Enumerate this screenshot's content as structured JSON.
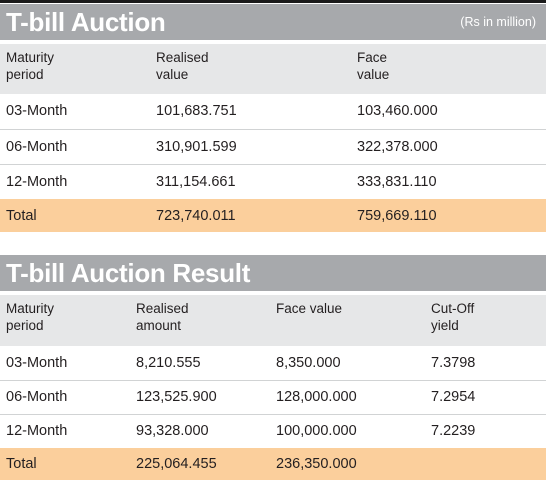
{
  "auction": {
    "title": "T-bill Auction",
    "unit_note": "(Rs in million)",
    "headers": [
      [
        "Maturity",
        "period"
      ],
      [
        "Realised",
        "value"
      ],
      [
        "Face",
        "value"
      ]
    ],
    "rows": [
      [
        "03-Month",
        "101,683.751",
        "103,460.000"
      ],
      [
        "06-Month",
        "310,901.599",
        "322,378.000"
      ],
      [
        "12-Month",
        "311,154.661",
        "333,831.110"
      ]
    ],
    "total": [
      "Total",
      "723,740.011",
      "759,669.110"
    ]
  },
  "result": {
    "title": "T-bill Auction Result",
    "headers": [
      [
        "Maturity",
        "period"
      ],
      [
        "Realised",
        "amount"
      ],
      [
        "Face value",
        ""
      ],
      [
        "Cut-Off",
        "yield"
      ]
    ],
    "rows": [
      [
        "03-Month",
        "8,210.555",
        "8,350.000",
        "7.3798"
      ],
      [
        "06-Month",
        "123,525.900",
        "128,000.000",
        "7.2954"
      ],
      [
        "12-Month",
        "93,328.000",
        "100,000.000",
        "7.2239"
      ]
    ],
    "total": [
      "Total",
      "225,064.455",
      "236,350.000",
      ""
    ]
  },
  "colors": {
    "title_bar": "#a7a9ac",
    "header_row": "#e6e7e8",
    "total_row": "#fbcf9c",
    "text": "#231f20"
  }
}
